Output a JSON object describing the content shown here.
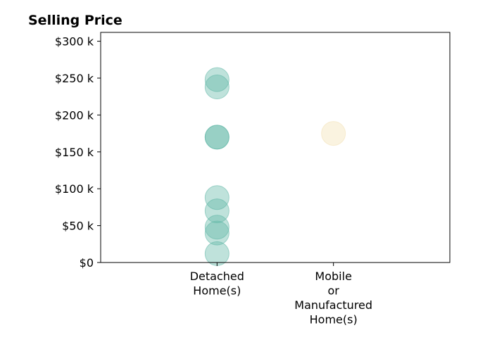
{
  "chart_data": {
    "type": "scatter",
    "title": "Selling Price",
    "xlabel": "",
    "ylabel": "",
    "categories": [
      [
        "Detached",
        "Home(s)"
      ],
      [
        "Mobile",
        "or",
        "Manufactured",
        "Home(s)"
      ]
    ],
    "xlim": [
      -1,
      2
    ],
    "ylim": [
      0,
      312000
    ],
    "yticks": [
      {
        "value": 0,
        "label": "$0"
      },
      {
        "value": 50000,
        "label": "$50 k"
      },
      {
        "value": 100000,
        "label": "$100 k"
      },
      {
        "value": 150000,
        "label": "$150 k"
      },
      {
        "value": 200000,
        "label": "$200 k"
      },
      {
        "value": 250000,
        "label": "$250 k"
      },
      {
        "value": 300000,
        "label": "$300 k"
      }
    ],
    "grid": false,
    "legend": "none",
    "series": [
      {
        "category_index": 0,
        "color": "#5fb7a6",
        "values": [
          248000,
          238000,
          170000,
          170000,
          88000,
          70000,
          48000,
          40000,
          12000
        ]
      },
      {
        "category_index": 1,
        "color": "#f2e0b2",
        "values": [
          175000
        ]
      }
    ]
  }
}
